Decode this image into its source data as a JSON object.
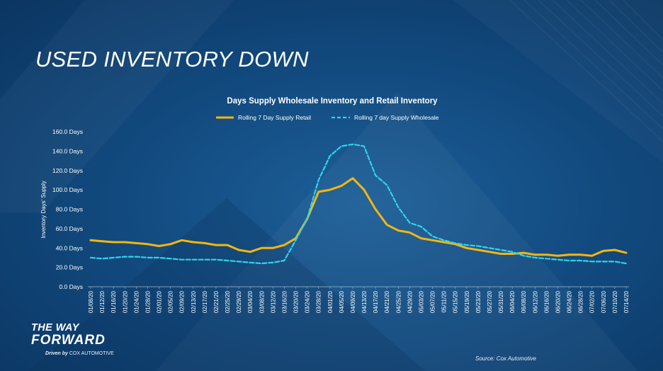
{
  "slide": {
    "title": "USED INVENTORY DOWN",
    "source": "Source: Cox Automotive",
    "logo": {
      "line1": "THE WAY",
      "line2": "FORWARD",
      "driven_by": "Driven by",
      "brand": "COX AUTOMOTIVE"
    },
    "colors": {
      "background": "#124b80",
      "retail": "#f5b60e",
      "wholesale": "#2fd4ea"
    }
  },
  "chart_data": {
    "type": "line",
    "title": "Days Supply Wholesale Inventory and Retail Inventory",
    "ylabel": "Inventory Days' Supply",
    "xlabel": "",
    "ylim": [
      0,
      160
    ],
    "yticks": [
      "0.0 Days",
      "20.0 Days",
      "40.0 Days",
      "60.0 Days",
      "80.0 Days",
      "100.0 Days",
      "120.0 Days",
      "140.0 Days",
      "160.0 Days"
    ],
    "legend_position": "top",
    "grid": false,
    "categories": [
      "01/08/20",
      "01/12/20",
      "01/16/20",
      "01/20/20",
      "01/24/20",
      "01/28/20",
      "02/01/20",
      "02/05/20",
      "02/09/20",
      "02/13/20",
      "02/17/20",
      "02/21/20",
      "02/25/20",
      "02/29/20",
      "03/04/20",
      "03/08/20",
      "03/12/20",
      "03/16/20",
      "03/20/20",
      "03/24/20",
      "03/28/20",
      "04/01/20",
      "04/05/20",
      "04/09/20",
      "04/13/20",
      "04/17/20",
      "04/21/20",
      "04/25/20",
      "04/29/20",
      "05/03/20",
      "05/07/20",
      "05/11/20",
      "05/15/20",
      "05/19/20",
      "05/23/20",
      "05/27/20",
      "05/31/20",
      "06/04/20",
      "06/08/20",
      "06/12/20",
      "06/16/20",
      "06/20/20",
      "06/24/20",
      "06/28/20",
      "07/02/20",
      "07/06/20",
      "07/10/20",
      "07/14/20"
    ],
    "series": [
      {
        "name": "Rolling 7 Day Supply Retail",
        "style": "solid",
        "values": [
          48,
          47,
          46,
          46,
          45,
          44,
          42,
          44,
          48,
          46,
          45,
          43,
          43,
          38,
          36,
          40,
          40,
          43,
          50,
          70,
          98,
          100,
          104,
          112,
          100,
          80,
          64,
          58,
          56,
          50,
          48,
          46,
          44,
          40,
          38,
          36,
          34,
          34,
          35,
          33,
          33,
          32,
          33,
          33,
          32,
          37,
          38,
          35
        ]
      },
      {
        "name": "Rolling 7 day Supply Wholesale",
        "style": "dashed",
        "values": [
          30,
          29,
          30,
          31,
          31,
          30,
          30,
          29,
          28,
          28,
          28,
          28,
          27,
          26,
          25,
          24,
          25,
          27,
          48,
          70,
          110,
          135,
          145,
          147,
          145,
          115,
          105,
          82,
          66,
          62,
          52,
          48,
          45,
          43,
          42,
          40,
          38,
          36,
          32,
          30,
          29,
          28,
          27,
          27,
          26,
          26,
          26,
          24
        ]
      }
    ]
  }
}
